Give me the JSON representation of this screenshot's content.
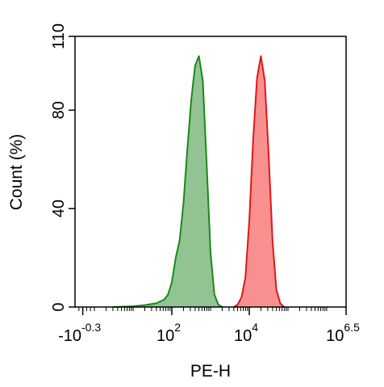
{
  "chart_data": {
    "type": "area",
    "xlabel": "PE-H",
    "ylabel": "Count  (%)",
    "x_scale": "biexponential-log",
    "xlim": [
      -0.5,
      6.5
    ],
    "ylim": [
      0,
      110
    ],
    "y_ticks": [
      {
        "value": 0,
        "label": "0"
      },
      {
        "value": 40,
        "label": "40"
      },
      {
        "value": 80,
        "label": "80"
      },
      {
        "value": 110,
        "label": "110"
      }
    ],
    "x_ticks": [
      {
        "value": -0.3,
        "base": "-10",
        "exp": "-0.3"
      },
      {
        "value": 2,
        "base": "10",
        "exp": "2"
      },
      {
        "value": 4,
        "base": "10",
        "exp": "4"
      },
      {
        "value": 6.5,
        "base": "10",
        "exp": "6.5"
      }
    ],
    "series": [
      {
        "color": "#1a8a1a",
        "fill": "#8cc08c",
        "points": [
          [
            0.5,
            0
          ],
          [
            1.0,
            0.3
          ],
          [
            1.3,
            0.8
          ],
          [
            1.6,
            1.5
          ],
          [
            1.8,
            3
          ],
          [
            1.9,
            5
          ],
          [
            2.0,
            10
          ],
          [
            2.1,
            20
          ],
          [
            2.2,
            27
          ],
          [
            2.3,
            42
          ],
          [
            2.4,
            64
          ],
          [
            2.5,
            84
          ],
          [
            2.6,
            98
          ],
          [
            2.7,
            102
          ],
          [
            2.8,
            92
          ],
          [
            2.9,
            58
          ],
          [
            3.0,
            22
          ],
          [
            3.1,
            5
          ],
          [
            3.2,
            1
          ],
          [
            3.3,
            0
          ]
        ]
      },
      {
        "color": "#e01818",
        "fill": "#f88a8a",
        "points": [
          [
            3.6,
            0
          ],
          [
            3.7,
            1
          ],
          [
            3.8,
            4
          ],
          [
            3.9,
            12
          ],
          [
            4.0,
            35
          ],
          [
            4.1,
            68
          ],
          [
            4.2,
            93
          ],
          [
            4.3,
            102
          ],
          [
            4.4,
            92
          ],
          [
            4.5,
            62
          ],
          [
            4.6,
            27
          ],
          [
            4.7,
            7
          ],
          [
            4.8,
            1.5
          ],
          [
            4.9,
            0
          ]
        ]
      }
    ]
  }
}
